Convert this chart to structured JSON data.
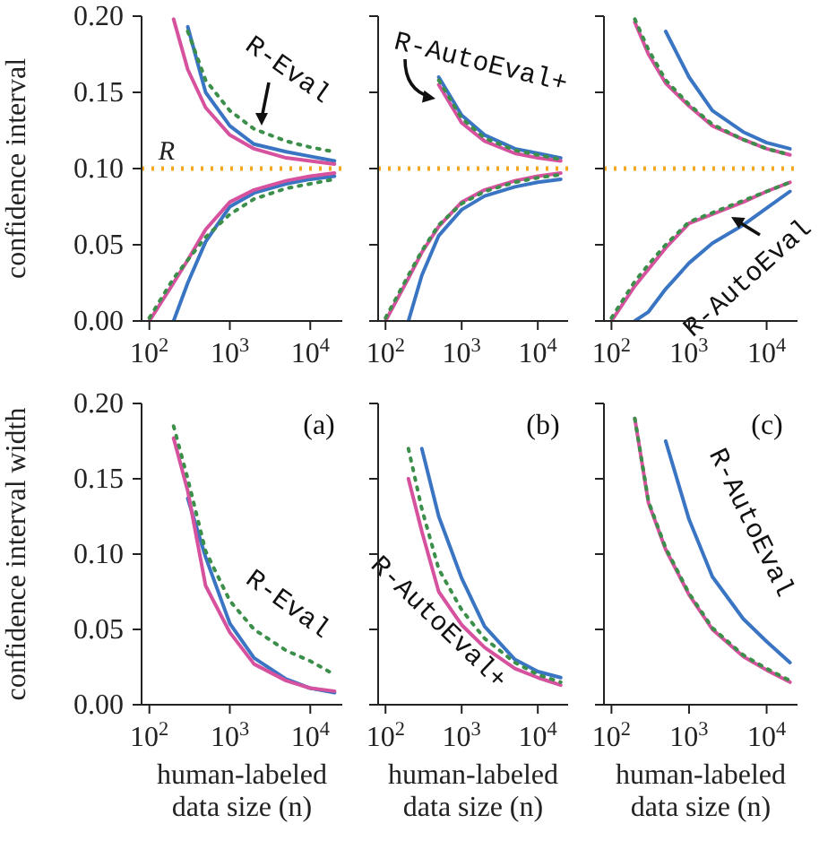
{
  "chart_data": [
    {
      "type": "line",
      "ylabel": "confidence interval",
      "annotations": [
        "R-Eval"
      ],
      "x": [
        100,
        200,
        300,
        500,
        1000,
        2000,
        5000,
        10000,
        20000
      ],
      "log": "x",
      "xlim": [
        80,
        25000
      ],
      "xticks": [
        {
          "value": 100,
          "label": "10$^{2}$"
        },
        {
          "value": 1000,
          "label": "10$^{3}$"
        },
        {
          "value": 10000,
          "label": "10$^{4}$"
        }
      ],
      "ylim": [
        0,
        0.2
      ],
      "yticks": [
        {
          "value": 0,
          "label": "0.00"
        },
        {
          "value": 0.05,
          "label": "0.05"
        },
        {
          "value": 0.1,
          "label": "0.10"
        },
        {
          "value": 0.15,
          "label": "0.15"
        },
        {
          "value": 0.2,
          "label": "0.20"
        }
      ],
      "ref_lines": [
        {
          "axis": "y",
          "value": 0.1,
          "label": "R",
          "color": "#f5a623",
          "line_style": "dotted"
        }
      ],
      "series": [
        {
          "color": "#3a75c4",
          "values": [
            null,
            null,
            0.193,
            0.15,
            0.128,
            0.116,
            0.111,
            0.108,
            0.105
          ]
        },
        {
          "color": "#d6529f",
          "values": [
            null,
            0.198,
            0.165,
            0.14,
            0.122,
            0.113,
            0.107,
            0.105,
            0.103
          ]
        },
        {
          "color": "#3c8f4a",
          "line_style": "dotted",
          "values": [
            null,
            null,
            0.19,
            0.158,
            0.138,
            0.126,
            0.118,
            0.114,
            0.111
          ]
        },
        {
          "color": "#3a75c4",
          "values": [
            null,
            0.0,
            0.025,
            0.052,
            0.075,
            0.084,
            0.09,
            0.093,
            0.095
          ]
        },
        {
          "color": "#d6529f",
          "values": [
            0.0,
            0.025,
            0.04,
            0.06,
            0.078,
            0.086,
            0.092,
            0.095,
            0.097
          ]
        },
        {
          "color": "#3c8f4a",
          "line_style": "dotted",
          "values": [
            0.002,
            0.028,
            0.04,
            0.055,
            0.07,
            0.08,
            0.087,
            0.09,
            0.093
          ]
        }
      ]
    },
    {
      "type": "line",
      "annotations": [
        "R-AutoEval+"
      ],
      "x": [
        100,
        200,
        300,
        500,
        1000,
        2000,
        5000,
        10000,
        20000
      ],
      "log": "x",
      "tick_labels": "x",
      "xlim": [
        80,
        25000
      ],
      "xticks": [
        {
          "value": 100,
          "label": "10$^{2}$"
        },
        {
          "value": 1000,
          "label": "10$^{3}$"
        },
        {
          "value": 10000,
          "label": "10$^{4}$"
        }
      ],
      "ylim": [
        0,
        0.2
      ],
      "yticks": [
        0,
        0.05,
        0.1,
        0.15,
        0.2
      ],
      "ref_lines": [
        {
          "axis": "y",
          "value": 0.1,
          "color": "#f5a623",
          "line_style": "dotted"
        }
      ],
      "series": [
        {
          "color": "#3a75c4",
          "values": [
            null,
            null,
            null,
            0.16,
            0.135,
            0.122,
            0.113,
            0.11,
            0.107
          ]
        },
        {
          "color": "#d6529f",
          "values": [
            null,
            null,
            null,
            0.155,
            0.13,
            0.118,
            0.11,
            0.107,
            0.105
          ]
        },
        {
          "color": "#3c8f4a",
          "line_style": "dotted",
          "values": [
            null,
            null,
            null,
            0.158,
            0.133,
            0.12,
            0.112,
            0.109,
            0.106
          ]
        },
        {
          "color": "#3a75c4",
          "values": [
            null,
            0.0,
            0.03,
            0.056,
            0.073,
            0.082,
            0.088,
            0.091,
            0.093
          ]
        },
        {
          "color": "#d6529f",
          "values": [
            0.0,
            0.028,
            0.045,
            0.062,
            0.078,
            0.086,
            0.092,
            0.095,
            0.097
          ]
        },
        {
          "color": "#3c8f4a",
          "line_style": "dotted",
          "values": [
            0.002,
            0.03,
            0.046,
            0.063,
            0.077,
            0.085,
            0.091,
            0.094,
            0.096
          ]
        }
      ]
    },
    {
      "type": "line",
      "annotations": [
        "R-AutoEval"
      ],
      "x": [
        100,
        200,
        300,
        500,
        1000,
        2000,
        5000,
        10000,
        20000
      ],
      "log": "x",
      "tick_labels": "x",
      "xlim": [
        80,
        25000
      ],
      "xticks": [
        {
          "value": 100,
          "label": "10$^{2}$"
        },
        {
          "value": 1000,
          "label": "10$^{3}$"
        },
        {
          "value": 10000,
          "label": "10$^{4}$"
        }
      ],
      "ylim": [
        0,
        0.2
      ],
      "yticks": [
        0,
        0.05,
        0.1,
        0.15,
        0.2
      ],
      "ref_lines": [
        {
          "axis": "y",
          "value": 0.1,
          "color": "#f5a623",
          "line_style": "dotted"
        }
      ],
      "series": [
        {
          "color": "#3a75c4",
          "values": [
            null,
            null,
            null,
            0.19,
            0.16,
            0.138,
            0.124,
            0.117,
            0.113
          ]
        },
        {
          "color": "#d6529f",
          "values": [
            null,
            0.196,
            0.175,
            0.156,
            0.141,
            0.128,
            0.119,
            0.113,
            0.109
          ]
        },
        {
          "color": "#3c8f4a",
          "line_style": "dotted",
          "values": [
            null,
            0.198,
            0.178,
            0.158,
            0.142,
            0.129,
            0.119,
            0.113,
            0.109
          ]
        },
        {
          "color": "#3a75c4",
          "values": [
            null,
            0.0,
            0.006,
            0.021,
            0.038,
            0.051,
            0.063,
            0.074,
            0.085
          ]
        },
        {
          "color": "#d6529f",
          "values": [
            0.0,
            0.023,
            0.034,
            0.048,
            0.064,
            0.07,
            0.078,
            0.085,
            0.091
          ]
        },
        {
          "color": "#3c8f4a",
          "line_style": "dotted",
          "values": [
            0.002,
            0.026,
            0.037,
            0.05,
            0.065,
            0.071,
            0.079,
            0.085,
            0.091
          ]
        }
      ]
    },
    {
      "type": "line",
      "ylabel": "confidence interval width",
      "xlabel": "human-labeled data size (n)",
      "annotations": [
        "(a)",
        "R-Eval"
      ],
      "x": [
        200,
        300,
        500,
        1000,
        2000,
        5000,
        10000,
        20000
      ],
      "log": "x",
      "xlim": [
        80,
        25000
      ],
      "xticks": [
        {
          "value": 100,
          "label": "10$^{2}$"
        },
        {
          "value": 1000,
          "label": "10$^{3}$"
        },
        {
          "value": 10000,
          "label": "10$^{4}$"
        }
      ],
      "ylim": [
        0,
        0.2
      ],
      "yticks": [
        {
          "value": 0,
          "label": "0.00"
        },
        {
          "value": 0.05,
          "label": "0.05"
        },
        {
          "value": 0.1,
          "label": "0.10"
        },
        {
          "value": 0.15,
          "label": "0.15"
        },
        {
          "value": 0.2,
          "label": "0.20"
        }
      ],
      "series": [
        {
          "color": "#3a75c4",
          "values": [
            null,
            0.137,
            0.098,
            0.054,
            0.031,
            0.017,
            0.011,
            0.008
          ]
        },
        {
          "color": "#d6529f",
          "values": [
            0.177,
            0.142,
            0.079,
            0.048,
            0.027,
            0.016,
            0.011,
            0.009
          ]
        },
        {
          "color": "#3c8f4a",
          "line_style": "dotted",
          "values": [
            0.185,
            0.15,
            0.102,
            0.069,
            0.05,
            0.036,
            0.029,
            0.02
          ]
        }
      ]
    },
    {
      "type": "line",
      "xlabel": "human-labeled data size (n)",
      "annotations": [
        "(b)",
        "R-AutoEval+"
      ],
      "x": [
        200,
        300,
        500,
        1000,
        2000,
        5000,
        10000,
        20000
      ],
      "log": "x",
      "tick_labels": "x",
      "xlim": [
        80,
        25000
      ],
      "xticks": [
        {
          "value": 100,
          "label": "10$^{2}$"
        },
        {
          "value": 1000,
          "label": "10$^{3}$"
        },
        {
          "value": 10000,
          "label": "10$^{4}$"
        }
      ],
      "ylim": [
        0,
        0.2
      ],
      "yticks": [
        0,
        0.05,
        0.1,
        0.15,
        0.2
      ],
      "series": [
        {
          "color": "#3a75c4",
          "values": [
            null,
            0.17,
            0.125,
            0.084,
            0.052,
            0.03,
            0.022,
            0.018
          ]
        },
        {
          "color": "#d6529f",
          "values": [
            0.15,
            0.115,
            0.075,
            0.053,
            0.038,
            0.024,
            0.018,
            0.013
          ]
        },
        {
          "color": "#3c8f4a",
          "line_style": "dotted",
          "values": [
            0.17,
            0.13,
            0.09,
            0.063,
            0.044,
            0.028,
            0.02,
            0.015
          ]
        }
      ]
    },
    {
      "type": "line",
      "xlabel": "human-labeled data size (n)",
      "annotations": [
        "(c)",
        "R-AutoEval"
      ],
      "x": [
        200,
        300,
        500,
        1000,
        2000,
        5000,
        10000,
        20000
      ],
      "log": "x",
      "tick_labels": "x",
      "xlim": [
        80,
        25000
      ],
      "xticks": [
        {
          "value": 100,
          "label": "10$^{2}$"
        },
        {
          "value": 1000,
          "label": "10$^{3}$"
        },
        {
          "value": 10000,
          "label": "10$^{4}$"
        }
      ],
      "ylim": [
        0,
        0.2
      ],
      "yticks": [
        0,
        0.05,
        0.1,
        0.15,
        0.2
      ],
      "series": [
        {
          "color": "#3a75c4",
          "values": [
            null,
            null,
            0.175,
            0.123,
            0.085,
            0.057,
            0.042,
            0.028
          ]
        },
        {
          "color": "#d6529f",
          "values": [
            0.19,
            0.134,
            0.103,
            0.073,
            0.05,
            0.032,
            0.023,
            0.015
          ]
        },
        {
          "color": "#3c8f4a",
          "line_style": "dotted",
          "values": [
            0.19,
            0.135,
            0.104,
            0.074,
            0.051,
            0.033,
            0.024,
            0.016
          ]
        }
      ]
    }
  ]
}
